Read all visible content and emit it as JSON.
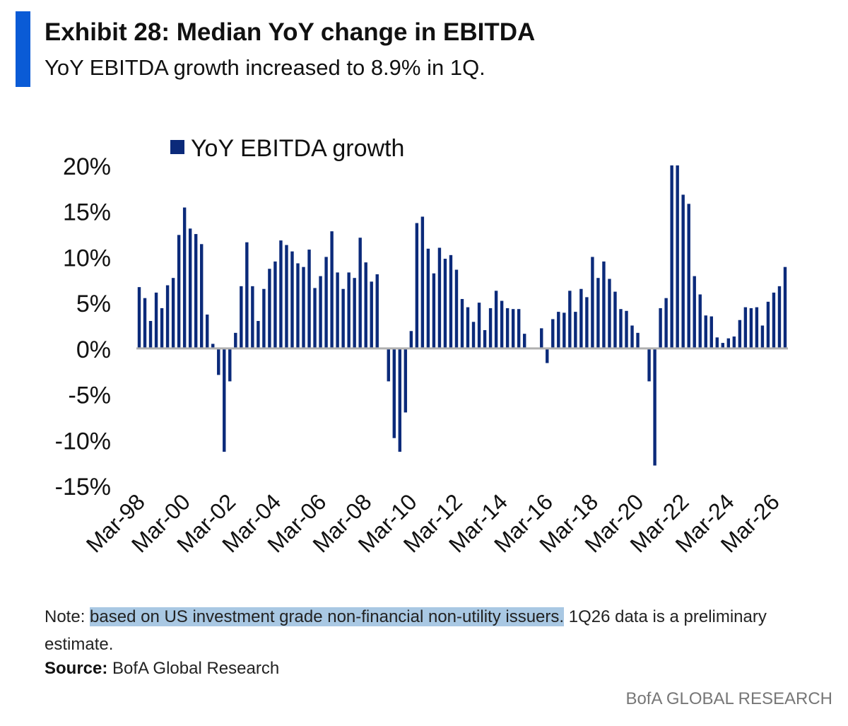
{
  "header": {
    "title": "Exhibit 28: Median YoY change in EBITDA",
    "subtitle": "YoY EBITDA growth increased to 8.9% in 1Q."
  },
  "footer": {
    "note_prefix": "Note: ",
    "note_highlight": "based on US investment grade non-financial non-utility issuers.",
    "note_rest": " 1Q26 data is a preliminary estimate.",
    "source_label": "Source:",
    "source_text": " BofA Global Research",
    "brand": "BofA GLOBAL RESEARCH"
  },
  "colors": {
    "accent": "#0a5bd6",
    "bar": "#0b2a7a",
    "highlight": "#a9c8e3"
  },
  "chart_data": {
    "type": "bar",
    "legend": {
      "position": "top-left",
      "entries": [
        "YoY EBITDA growth"
      ]
    },
    "grid": false,
    "ylim": [
      -15,
      20
    ],
    "yticks": [
      "20%",
      "15%",
      "10%",
      "5%",
      "0%",
      "-5%",
      "-10%",
      "-15%"
    ],
    "ytick_values": [
      20,
      15,
      10,
      5,
      0,
      -5,
      -10,
      -15
    ],
    "xtick_labels": [
      "Mar-98",
      "Mar-00",
      "Mar-02",
      "Mar-04",
      "Mar-06",
      "Mar-08",
      "Mar-10",
      "Mar-12",
      "Mar-14",
      "Mar-16",
      "Mar-18",
      "Mar-20",
      "Mar-22",
      "Mar-24",
      "Mar-26"
    ],
    "start_label": "1Q98",
    "end_label": "1Q26",
    "series": [
      {
        "name": "YoY EBITDA growth",
        "values": [
          6.7,
          5.5,
          3.0,
          6.1,
          4.4,
          6.9,
          7.7,
          12.4,
          15.4,
          13.1,
          12.5,
          11.4,
          3.7,
          0.5,
          -2.9,
          -11.3,
          -3.6,
          1.7,
          6.8,
          11.6,
          6.8,
          3.0,
          6.5,
          8.7,
          9.5,
          11.8,
          11.3,
          10.6,
          9.3,
          8.9,
          10.8,
          6.6,
          7.9,
          10.0,
          12.8,
          8.3,
          6.5,
          8.3,
          7.7,
          12.1,
          9.4,
          7.3,
          8.1,
          0.0,
          -3.6,
          -9.8,
          -11.3,
          -7.0,
          1.9,
          13.7,
          14.4,
          10.9,
          8.2,
          11.0,
          9.8,
          10.2,
          8.6,
          5.4,
          4.5,
          2.9,
          5.0,
          2.0,
          4.4,
          6.3,
          5.2,
          4.4,
          4.3,
          4.3,
          1.6,
          0.0,
          0.0,
          2.2,
          -1.6,
          3.2,
          4.0,
          3.9,
          6.3,
          4.0,
          6.5,
          5.6,
          10.0,
          7.7,
          9.5,
          7.6,
          6.2,
          4.3,
          4.1,
          2.5,
          1.7,
          0.0,
          -3.6,
          -12.8,
          4.4,
          5.5,
          20.0,
          20.0,
          16.8,
          15.8,
          7.9,
          5.9,
          3.6,
          3.5,
          1.2,
          0.6,
          1.1,
          1.3,
          3.1,
          4.5,
          4.4,
          4.5,
          2.5,
          5.1,
          6.1,
          6.8,
          8.9
        ]
      }
    ]
  }
}
